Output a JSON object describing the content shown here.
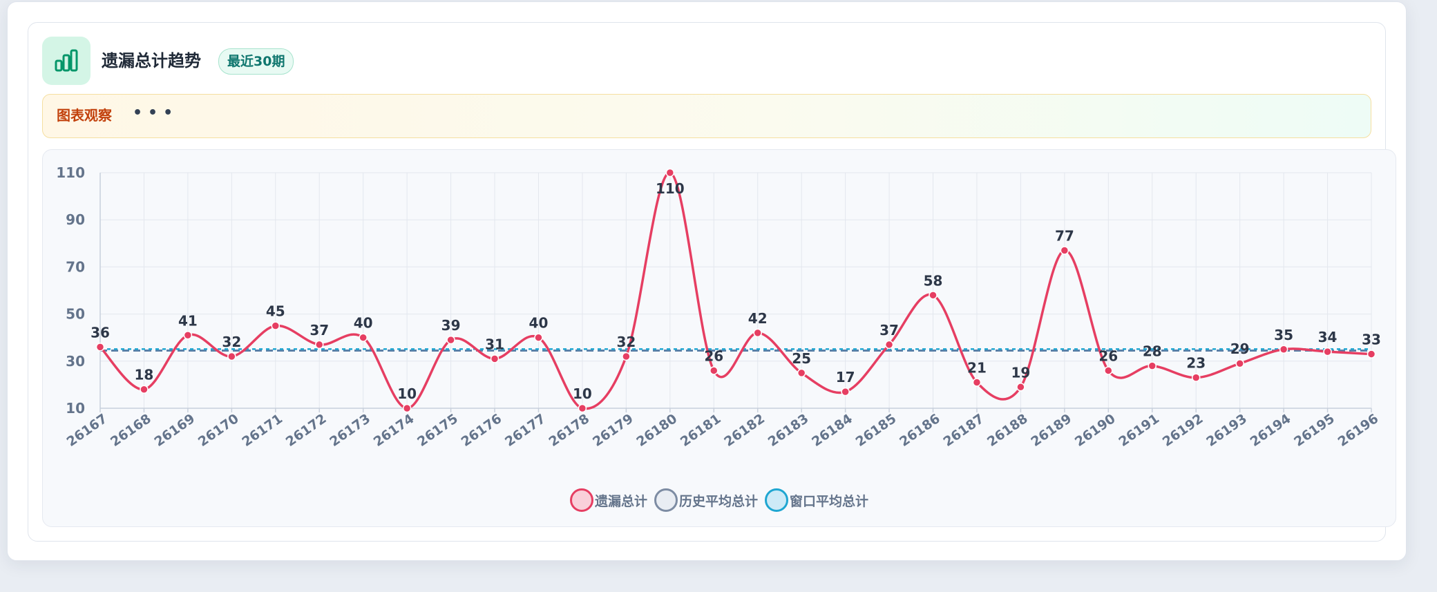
{
  "header": {
    "title": "遗漏总计趋势",
    "badge": "最近30期"
  },
  "observation": {
    "label": "图表观察",
    "dots": "•••"
  },
  "colors": {
    "main_series": "#e63e62",
    "history_avg": "#5b7fa6",
    "window_avg": "#1fa6d1",
    "accent": "#059669"
  },
  "legend": [
    {
      "name": "遗漏总计",
      "fill": "#f9d0da",
      "stroke": "#e63e62"
    },
    {
      "name": "历史平均总计",
      "fill": "#e9edf3",
      "stroke": "#7d8ca3"
    },
    {
      "name": "窗口平均总计",
      "fill": "#cdeaf7",
      "stroke": "#1fa6d1"
    }
  ],
  "chart_data": {
    "type": "line",
    "categories": [
      "26167",
      "26168",
      "26169",
      "26170",
      "26171",
      "26172",
      "26173",
      "26174",
      "26175",
      "26176",
      "26177",
      "26178",
      "26179",
      "26180",
      "26181",
      "26182",
      "26183",
      "26184",
      "26185",
      "26186",
      "26187",
      "26188",
      "26189",
      "26190",
      "26191",
      "26192",
      "26193",
      "26194",
      "26195",
      "26196"
    ],
    "series": [
      {
        "name": "遗漏总计",
        "values": [
          36,
          18,
          41,
          32,
          45,
          37,
          40,
          10,
          39,
          31,
          40,
          10,
          32,
          110,
          26,
          42,
          25,
          17,
          37,
          58,
          21,
          19,
          77,
          26,
          28,
          23,
          29,
          35,
          34,
          33
        ]
      },
      {
        "name": "历史平均总计",
        "values": [
          34.5,
          34.5,
          34.5,
          34.5,
          34.5,
          34.5,
          34.5,
          34.5,
          34.5,
          34.5,
          34.5,
          34.5,
          34.5,
          34.5,
          34.5,
          34.5,
          34.5,
          34.5,
          34.5,
          34.5,
          34.5,
          34.5,
          34.5,
          34.5,
          34.5,
          34.5,
          34.5,
          34.5,
          34.5,
          34.5
        ]
      },
      {
        "name": "窗口平均总计",
        "values": [
          35.1,
          35.1,
          35.1,
          35.1,
          35.1,
          35.1,
          35.1,
          35.1,
          35.1,
          35.1,
          35.1,
          35.1,
          35.1,
          35.1,
          35.1,
          35.1,
          35.1,
          35.1,
          35.1,
          35.1,
          35.1,
          35.1,
          35.1,
          35.1,
          35.1,
          35.1,
          35.1,
          35.1,
          35.1,
          35.1
        ]
      }
    ],
    "ylim": [
      10,
      110
    ],
    "yticks": [
      10,
      30,
      50,
      70,
      90,
      110
    ],
    "grid": true,
    "legend_position": "bottom"
  }
}
